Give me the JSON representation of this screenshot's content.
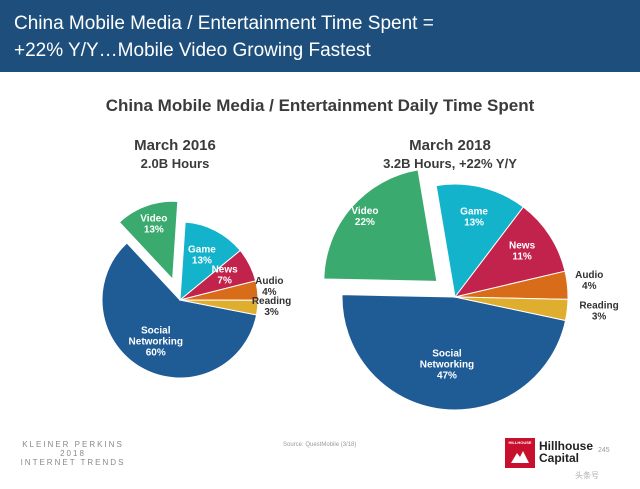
{
  "banner": {
    "line1": "China Mobile Media / Entertainment Time Spent =",
    "line2": "+22% Y/Y…Mobile Video Growing Fastest"
  },
  "main_title": "China Mobile Media / Entertainment Daily Time Spent",
  "charts": {
    "left": {
      "title": "March 2016",
      "subtitle": "2.0B Hours"
    },
    "right": {
      "title": "March 2018",
      "subtitle": "3.2B Hours, +22% Y/Y"
    }
  },
  "chart_data": [
    {
      "type": "pie",
      "title": "March 2016",
      "subtitle": "2.0B Hours",
      "slices": [
        {
          "label": [
            "Social",
            "Networking"
          ],
          "value": 60,
          "text": "60%",
          "color": "#1f5c96",
          "exploded": false
        },
        {
          "label": [
            "Video"
          ],
          "value": 13,
          "text": "13%",
          "color": "#3aaa6e",
          "exploded": true
        },
        {
          "label": [
            "Game"
          ],
          "value": 13,
          "text": "13%",
          "color": "#13b3cc",
          "exploded": false
        },
        {
          "label": [
            "News"
          ],
          "value": 7,
          "text": "7%",
          "color": "#c2234d",
          "exploded": false
        },
        {
          "label": [
            "Audio"
          ],
          "value": 4,
          "text": "4%",
          "color": "#d96c18",
          "exploded": false
        },
        {
          "label": [
            "Reading"
          ],
          "value": 3,
          "text": "3%",
          "color": "#e0ae2f",
          "exploded": false
        }
      ]
    },
    {
      "type": "pie",
      "title": "March 2018",
      "subtitle": "3.2B Hours, +22% Y/Y",
      "slices": [
        {
          "label": [
            "Social",
            "Networking"
          ],
          "value": 47,
          "text": "47%",
          "color": "#1f5c96",
          "exploded": false
        },
        {
          "label": [
            "Video"
          ],
          "value": 22,
          "text": "22%",
          "color": "#3aaa6e",
          "exploded": true
        },
        {
          "label": [
            "Game"
          ],
          "value": 13,
          "text": "13%",
          "color": "#13b3cc",
          "exploded": false
        },
        {
          "label": [
            "News"
          ],
          "value": 11,
          "text": "11%",
          "color": "#c2234d",
          "exploded": false
        },
        {
          "label": [
            "Audio"
          ],
          "value": 4,
          "text": "4%",
          "color": "#d96c18",
          "exploded": false
        },
        {
          "label": [
            "Reading"
          ],
          "value": 3,
          "text": "3%",
          "color": "#e0ae2f",
          "exploded": false
        }
      ]
    }
  ],
  "footer": {
    "brand_lines": [
      "KLEINER PERKINS",
      "2018",
      "INTERNET TRENDS"
    ],
    "source": "Source: QuestMobile (3/18)",
    "page": "245",
    "logo_box_text": "HILLHOUSE",
    "logo_lines": [
      "Hillhouse",
      "Capital"
    ],
    "watermark": "头条号"
  }
}
